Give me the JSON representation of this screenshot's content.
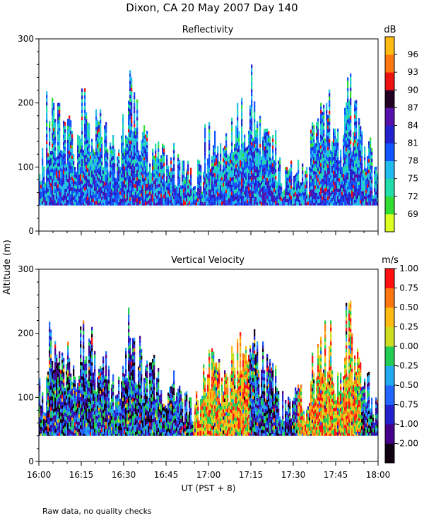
{
  "title": "Dixon, CA 20 May 2007  Day 140",
  "footnote": "Raw data, no quality checks",
  "ylabel": "Altitude (m)",
  "xlabel": "UT  (PST + 8)",
  "colors": {
    "reflectivity": [
      "#ddff22",
      "#33dd33",
      "#22ddaa",
      "#22bbee",
      "#1155ff",
      "#2222cc",
      "#5511aa",
      "#220022",
      "#ee1111",
      "#ff7711",
      "#ffbb11"
    ],
    "velocity": [
      "#110011",
      "#440088",
      "#2222cc",
      "#2266ff",
      "#22aaee",
      "#22cc55",
      "#ccdd22",
      "#ffbb11",
      "#ff7711",
      "#ff1111"
    ]
  },
  "chart_data": [
    {
      "type": "heatmap",
      "id": "reflectivity",
      "title": "Reflectivity",
      "units": "dB",
      "xlabel": "",
      "ylabel": "Altitude (m)",
      "ylim": [
        0,
        300
      ],
      "yticks": [
        "0",
        "100",
        "200",
        "300"
      ],
      "colorbar_ticks": [
        "69",
        "72",
        "75",
        "78",
        "81",
        "84",
        "87",
        "90",
        "93",
        "96"
      ],
      "colorbar_range": [
        67.5,
        100.5
      ],
      "echo_base_m": 40,
      "echo_top_m": [
        130,
        220,
        200,
        170,
        180,
        150,
        220,
        210,
        190,
        170,
        150,
        130,
        180,
        240,
        200,
        170,
        160,
        140,
        130,
        140,
        120,
        110,
        100,
        110,
        160,
        170,
        160,
        150,
        180,
        200,
        180,
        260,
        180,
        160,
        150,
        110,
        100,
        110,
        120,
        100,
        170,
        200,
        220,
        160,
        150,
        240,
        200,
        170,
        140,
        100
      ]
    },
    {
      "type": "heatmap",
      "id": "velocity",
      "title": "Vertical Velocity",
      "units": "m/s",
      "xlabel": "UT  (PST + 8)",
      "ylabel": "Altitude (m)",
      "ylim": [
        0,
        300
      ],
      "yticks": [
        "0",
        "100",
        "200",
        "300"
      ],
      "colorbar_ticks": [
        "-2.00",
        "-1.00",
        "-0.75",
        "-0.50",
        "-0.25",
        "0.00",
        "0.25",
        "0.50",
        "0.75",
        "1.00"
      ],
      "colorbar_range": [
        -2.125,
        1.125
      ],
      "echo_base_m": 40,
      "echo_top_m": [
        130,
        220,
        200,
        170,
        180,
        150,
        220,
        210,
        190,
        170,
        150,
        130,
        180,
        240,
        200,
        170,
        160,
        140,
        130,
        140,
        120,
        110,
        100,
        110,
        160,
        170,
        160,
        150,
        180,
        200,
        180,
        260,
        180,
        160,
        150,
        110,
        100,
        110,
        120,
        100,
        170,
        200,
        220,
        160,
        150,
        240,
        200,
        170,
        140,
        100
      ]
    }
  ],
  "x_axis": {
    "range_min": [
      960,
      1080
    ],
    "ticks": [
      "16:00",
      "16:15",
      "16:30",
      "16:45",
      "17:00",
      "17:15",
      "17:30",
      "17:45",
      "18:00"
    ]
  }
}
